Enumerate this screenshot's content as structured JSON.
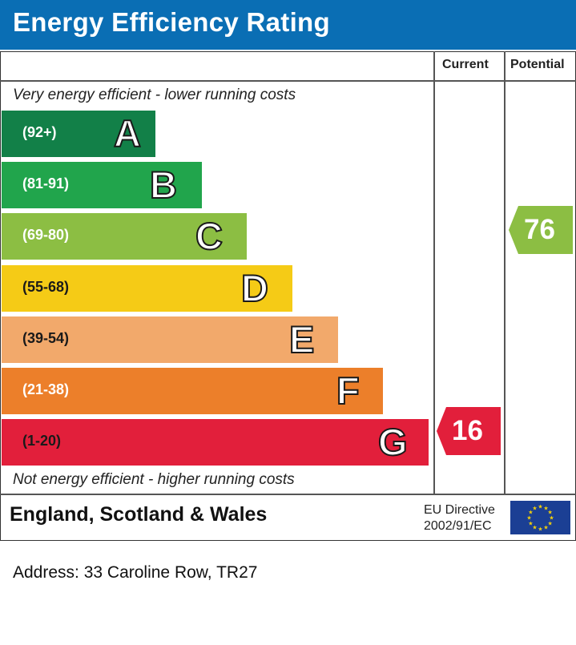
{
  "title": "Energy Efficiency Rating",
  "columns": {
    "current": "Current",
    "potential": "Potential"
  },
  "notes": {
    "top": "Very energy efficient - lower running costs",
    "bottom": "Not energy efficient - higher running costs"
  },
  "chart_data": {
    "type": "bar",
    "title": "Energy Efficiency Rating",
    "bands": [
      {
        "letter": "A",
        "range": "(92+)",
        "color": "#128048"
      },
      {
        "letter": "B",
        "range": "(81-91)",
        "color": "#21a54c"
      },
      {
        "letter": "C",
        "range": "(69-80)",
        "color": "#8cbe43"
      },
      {
        "letter": "D",
        "range": "(55-68)",
        "color": "#f5cb16"
      },
      {
        "letter": "E",
        "range": "(39-54)",
        "color": "#f2a96b"
      },
      {
        "letter": "F",
        "range": "(21-38)",
        "color": "#ec7f2a"
      },
      {
        "letter": "G",
        "range": "(1-20)",
        "color": "#e21f3b"
      }
    ],
    "current": {
      "value": 16,
      "band": "G",
      "color": "#e21f3b"
    },
    "potential": {
      "value": 76,
      "band": "C",
      "color": "#8cbe43"
    }
  },
  "footer": {
    "country": "England, Scotland & Wales",
    "directive_line1": "EU Directive",
    "directive_line2": "2002/91/EC",
    "flag_color": "#1b3f94",
    "star_color": "#f5d20a"
  },
  "address": "Address: 33 Caroline Row, TR27"
}
